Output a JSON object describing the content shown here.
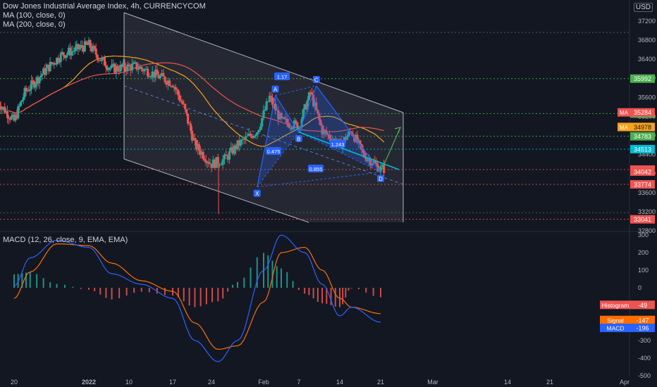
{
  "header": {
    "title": "Dow Jones Industrial Average Index, 4h, CURRENCYCOM",
    "ma100_label": "MA (100, close, 0)",
    "ma200_label": "MA (200, close, 0)",
    "macd_label": "MACD (12, 26, close, 9, EMA, EMA)",
    "currency": "USD"
  },
  "colors": {
    "background": "#131722",
    "up": "#26a69a",
    "down": "#ef5350",
    "ma100": "#f7a21b",
    "ma200": "#ef5350",
    "macd": "#2962ff",
    "signal": "#ff6d00",
    "channel": "#b2b5be",
    "harmonic": "#2962ff",
    "trendline": "#00bcd4",
    "arrow": "#4caf50"
  },
  "chart_data": [
    {
      "type": "candlestick",
      "title": "Dow Jones Industrial Average Index, 4h, CURRENCYCOM",
      "x_ticks": [
        "20",
        "2022",
        "10",
        "17",
        "24",
        "Feb",
        "7",
        "14",
        "21",
        "Mar",
        "14",
        "21",
        "Apr"
      ],
      "y_ticks": [
        37200,
        36800,
        36400,
        36000,
        35600,
        35200,
        34800,
        34400,
        34000,
        33600,
        33200,
        32800
      ],
      "ylim": [
        32700,
        37260
      ],
      "grid": false,
      "indicators": [
        "MA (100, close, 0)",
        "MA (200, close, 0)"
      ],
      "price_levels": [
        {
          "value": 35992,
          "label": "35992",
          "color": "#4caf50",
          "style": "dotted"
        },
        {
          "value": 35259,
          "label": "35259",
          "color": "#4caf50",
          "style": "dotted"
        },
        {
          "value": 34783,
          "label": "34783",
          "color": "#4caf50",
          "style": "dotted"
        },
        {
          "value": 34513,
          "label": "34513",
          "color": "#00bcd4",
          "style": "dotted"
        },
        {
          "value": 34084,
          "label": "34084",
          "color": "#ef5350",
          "style": "dotted"
        },
        {
          "value": 34042,
          "label": "34042",
          "color": "#ef5350",
          "style": "none"
        },
        {
          "value": 33774,
          "label": "33774",
          "color": "#ef5350",
          "style": "dotted"
        },
        {
          "value": 33041,
          "label": "33041",
          "color": "#ef5350",
          "style": "dotted"
        }
      ],
      "ma_badges": [
        {
          "name": "MA",
          "value": 35284,
          "label": "35284",
          "color": "#ef5350"
        },
        {
          "name": "MA",
          "value": 34978,
          "label": "34978",
          "color": "#f7a21b"
        }
      ],
      "harmonic_pattern": {
        "points": [
          {
            "name": "X",
            "date": "2022-01-31",
            "price": 33720
          },
          {
            "name": "A",
            "date": "2022-02-03",
            "price": 35640
          },
          {
            "name": "B",
            "date": "2022-02-07",
            "price": 34870
          },
          {
            "name": "C",
            "date": "2022-02-10",
            "price": 35840
          },
          {
            "name": "D",
            "date": "2022-02-21",
            "price": 34030
          }
        ],
        "ratios": [
          "1.17",
          "0.475",
          "1.243",
          "0.855"
        ]
      },
      "candles_approx": [
        {
          "date": "2021-12-17",
          "close": 35500
        },
        {
          "date": "2021-12-20",
          "close": 35100
        },
        {
          "date": "2021-12-22",
          "close": 35700
        },
        {
          "date": "2021-12-27",
          "close": 36300
        },
        {
          "date": "2021-12-29",
          "close": 36500
        },
        {
          "date": "2022-01-03",
          "close": 36700
        },
        {
          "date": "2022-01-05",
          "close": 36400
        },
        {
          "date": "2022-01-07",
          "close": 36200
        },
        {
          "date": "2022-01-11",
          "close": 36250
        },
        {
          "date": "2022-01-13",
          "close": 36150
        },
        {
          "date": "2022-01-17",
          "close": 35900
        },
        {
          "date": "2022-01-19",
          "close": 35400
        },
        {
          "date": "2022-01-21",
          "close": 34600
        },
        {
          "date": "2022-01-24",
          "close": 34200
        },
        {
          "date": "2022-01-26",
          "close": 34300
        },
        {
          "date": "2022-01-28",
          "close": 34600
        },
        {
          "date": "2022-01-31",
          "close": 34900
        },
        {
          "date": "2022-02-02",
          "close": 35600
        },
        {
          "date": "2022-02-04",
          "close": 35100
        },
        {
          "date": "2022-02-07",
          "close": 35000
        },
        {
          "date": "2022-02-09",
          "close": 35700
        },
        {
          "date": "2022-02-11",
          "close": 34900
        },
        {
          "date": "2022-02-14",
          "close": 34600
        },
        {
          "date": "2022-02-16",
          "close": 34900
        },
        {
          "date": "2022-02-18",
          "close": 34400
        },
        {
          "date": "2022-02-21",
          "close": 34100
        }
      ]
    },
    {
      "type": "line",
      "title": "MACD (12, 26, close, 9, EMA, EMA)",
      "y_ticks": [
        300,
        200,
        100,
        0,
        -100,
        -200,
        -300,
        -400,
        -500
      ],
      "ylim": [
        -520,
        380
      ],
      "series": [
        {
          "name": "MACD",
          "value": -196,
          "label": "-196",
          "color": "#2962ff",
          "x": [
            "2021-12-20",
            "2021-12-23",
            "2021-12-28",
            "2022-01-03",
            "2022-01-07",
            "2022-01-12",
            "2022-01-17",
            "2022-01-21",
            "2022-01-25",
            "2022-01-28",
            "2022-02-01",
            "2022-02-04",
            "2022-02-08",
            "2022-02-11",
            "2022-02-14",
            "2022-02-16",
            "2022-02-21"
          ],
          "y": [
            10,
            170,
            270,
            230,
            80,
            20,
            -60,
            -300,
            -420,
            -300,
            100,
            300,
            200,
            20,
            -160,
            -110,
            -196
          ]
        },
        {
          "name": "Signal",
          "value": -147,
          "label": "-147",
          "color": "#ff6d00",
          "x": [
            "2021-12-20",
            "2021-12-23",
            "2021-12-28",
            "2022-01-03",
            "2022-01-07",
            "2022-01-12",
            "2022-01-17",
            "2022-01-21",
            "2022-01-25",
            "2022-01-28",
            "2022-02-01",
            "2022-02-04",
            "2022-02-08",
            "2022-02-11",
            "2022-02-14",
            "2022-02-16",
            "2022-02-21"
          ],
          "y": [
            -60,
            90,
            250,
            240,
            140,
            40,
            -20,
            -200,
            -350,
            -330,
            -80,
            200,
            230,
            100,
            -60,
            -110,
            -147
          ]
        },
        {
          "name": "Histogram",
          "value": -49,
          "label": "-49",
          "color": "#ef5350"
        }
      ]
    }
  ]
}
